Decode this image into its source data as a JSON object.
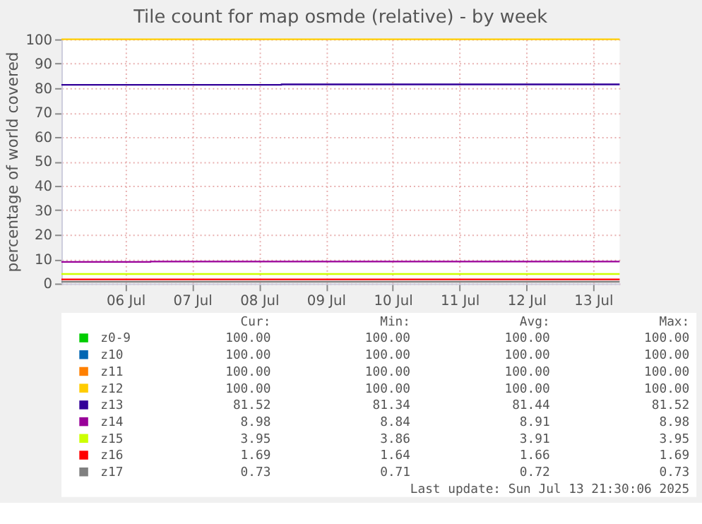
{
  "chart_data": {
    "type": "step",
    "title": "Tile count for map osmde (relative) - by week",
    "ylabel": "percentage of world covered",
    "xlim": [
      "2025-07-05T13:00",
      "2025-07-13T21:30"
    ],
    "xticks": [
      {
        "value": "2025-07-06T12:00",
        "label": "06 Jul"
      },
      {
        "value": "2025-07-07T12:00",
        "label": "07 Jul"
      },
      {
        "value": "2025-07-08T12:00",
        "label": "08 Jul"
      },
      {
        "value": "2025-07-09T12:00",
        "label": "09 Jul"
      },
      {
        "value": "2025-07-10T12:00",
        "label": "10 Jul"
      },
      {
        "value": "2025-07-11T12:00",
        "label": "11 Jul"
      },
      {
        "value": "2025-07-12T12:00",
        "label": "12 Jul"
      },
      {
        "value": "2025-07-13T12:00",
        "label": "13 Jul"
      }
    ],
    "ylim": [
      0,
      100
    ],
    "yticks": [
      0,
      10,
      20,
      30,
      40,
      50,
      60,
      70,
      80,
      90,
      100
    ],
    "grid": true,
    "legend": "bottom",
    "series": [
      {
        "name": "z0-9",
        "color": "#00cc00",
        "values": [
          null,
          null
        ]
      },
      {
        "name": "z10",
        "color": "#0066b3",
        "values": [
          null,
          null
        ]
      },
      {
        "name": "z11",
        "color": "#ff8000",
        "values": [
          null,
          null
        ]
      },
      {
        "name": "z12",
        "color": "#ffcc00",
        "x": [
          "2025-07-05T13:00",
          "2025-07-13T21:30"
        ],
        "values": [
          100,
          100
        ]
      },
      {
        "name": "z13",
        "color": "#330099",
        "x": [
          "2025-07-05T13:00",
          "2025-07-08T20:00",
          "2025-07-13T21:30"
        ],
        "values": [
          81.34,
          81.52,
          81.52
        ]
      },
      {
        "name": "z14",
        "color": "#990099",
        "x": [
          "2025-07-05T13:00",
          "2025-07-06T21:00",
          "2025-07-13T21:30"
        ],
        "values": [
          8.84,
          8.98,
          8.98
        ]
      },
      {
        "name": "z15",
        "color": "#ccff00",
        "x": [
          "2025-07-05T13:00",
          "2025-07-13T21:30"
        ],
        "values": [
          3.9,
          3.9
        ]
      },
      {
        "name": "z16",
        "color": "#ff0000",
        "x": [
          "2025-07-05T13:00",
          "2025-07-13T21:30"
        ],
        "values": [
          1.7,
          1.7
        ]
      },
      {
        "name": "z17",
        "color": "#808080",
        "x": [
          "2025-07-05T13:00",
          "2025-07-13T21:30"
        ],
        "values": [
          0.7,
          0.7
        ]
      }
    ],
    "annotations": [
      "Cur:",
      "Min:",
      "Avg:",
      "Max:",
      "100.00",
      "100.00",
      "100.00",
      "100.00",
      "100.00",
      "100.00",
      "100.00",
      "100.00",
      "100.00",
      "100.00",
      "100.00",
      "100.00",
      "100.00",
      "100.00",
      "100.00",
      "100.00",
      "81.52",
      "81.34",
      "81.44",
      "81.52",
      "8.98",
      "8.84",
      "8.91",
      "8.98",
      "3.95",
      "3.86",
      "3.91",
      "3.95",
      "1.69",
      "1.64",
      "1.66",
      "1.69",
      "0.73",
      "0.71",
      "0.72",
      "0.73",
      "Last update: Sun Jul 13 21:30:06 2025"
    ]
  }
}
